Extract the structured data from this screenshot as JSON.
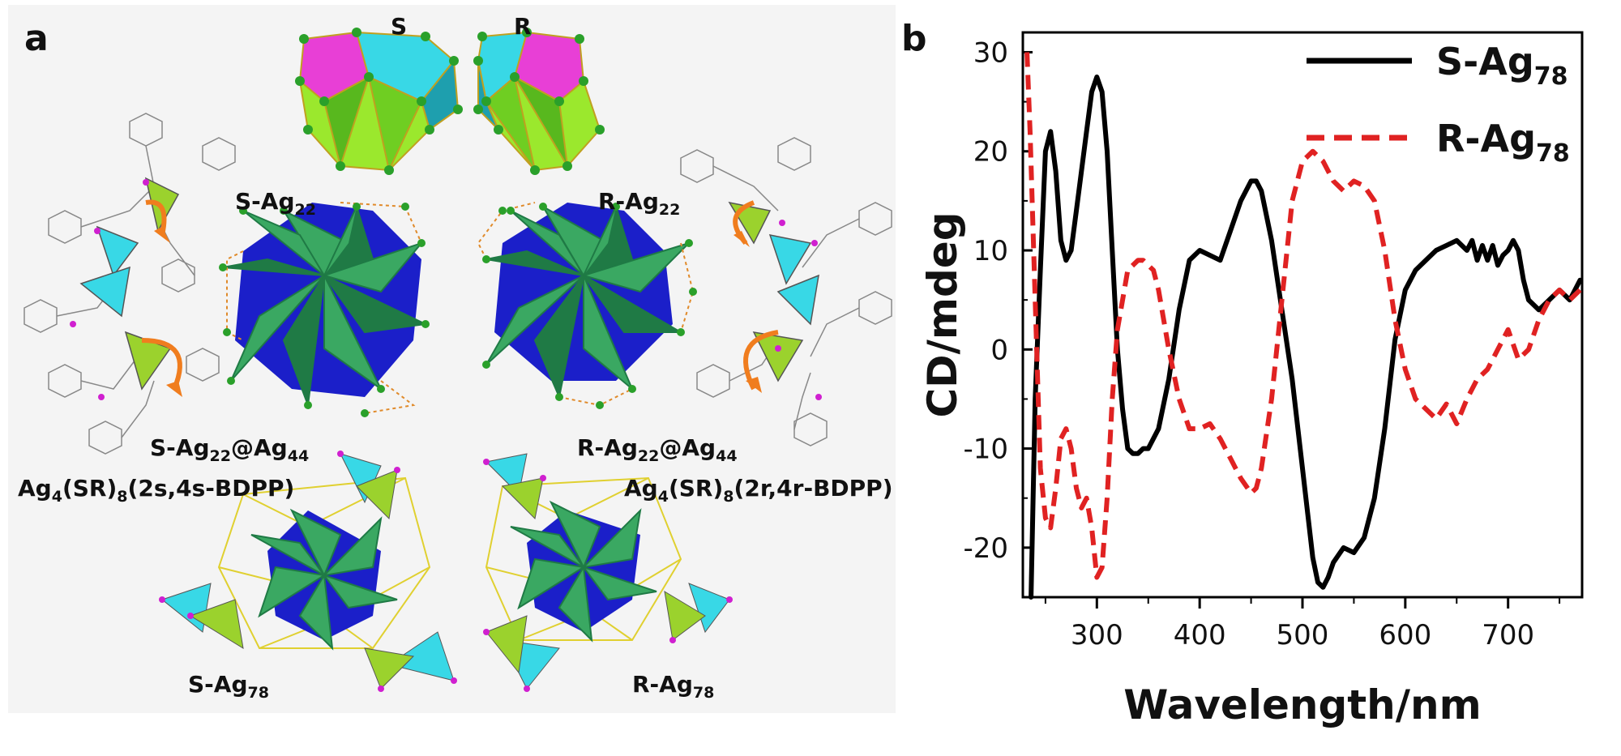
{
  "panel_a": {
    "letter": "a",
    "label_S": "S",
    "label_R": "R",
    "s_ag22": {
      "main": "S-Ag",
      "sub": "22"
    },
    "r_ag22": {
      "main": "R-Ag",
      "sub": "22"
    },
    "s_core": {
      "p1": "S-Ag",
      "s1": "22",
      "p2": "@Ag",
      "s2": "44"
    },
    "r_core": {
      "p1": "R-Ag",
      "s1": "22",
      "p2": "@Ag",
      "s2": "44"
    },
    "s_ligand": {
      "p1": "Ag",
      "s1": "4",
      "p2": "(SR)",
      "s2": "8",
      "p3": "(2s,4s-BDPP)"
    },
    "r_ligand": {
      "p1": "Ag",
      "s1": "4",
      "p2": "(SR)",
      "s2": "8",
      "p3": "(2r,4r-BDPP)"
    },
    "s_ag78": {
      "main": "S-Ag",
      "sub": "78"
    },
    "r_ag78": {
      "main": "R-Ag",
      "sub": "78"
    },
    "colors": {
      "magenta": "#e83fd6",
      "cyan": "#38d8e6",
      "lime": "#9be82d",
      "green": "#3aa862",
      "darkgreen": "#1f7a45",
      "blue": "#1b1fc9",
      "orange": "#f07d1e",
      "atom": "#2aa02a"
    }
  },
  "panel_b": {
    "letter": "b"
  },
  "chart_data": {
    "type": "line",
    "xlabel": "Wavelength/nm",
    "ylabel": "CD/mdeg",
    "xlim": [
      228,
      772
    ],
    "ylim": [
      -25,
      32
    ],
    "xticks": [
      300,
      400,
      500,
      600,
      700
    ],
    "yticks": [
      30,
      20,
      10,
      0,
      -10,
      -20
    ],
    "legend_position": "top-right",
    "series": [
      {
        "name": "S-Ag",
        "name_sub": "78",
        "color": "#000000",
        "dash": "solid",
        "x": [
          236,
          240,
          245,
          250,
          255,
          260,
          265,
          270,
          275,
          280,
          285,
          290,
          295,
          300,
          305,
          310,
          315,
          320,
          325,
          330,
          335,
          340,
          345,
          350,
          360,
          370,
          380,
          390,
          400,
          410,
          420,
          430,
          440,
          450,
          455,
          460,
          470,
          480,
          490,
          500,
          510,
          515,
          520,
          525,
          530,
          540,
          550,
          560,
          570,
          580,
          590,
          600,
          610,
          620,
          630,
          640,
          650,
          660,
          665,
          670,
          675,
          680,
          685,
          690,
          695,
          700,
          705,
          710,
          715,
          720,
          730,
          740,
          750,
          760,
          770
        ],
        "y": [
          -25,
          -5,
          8,
          20,
          22,
          18,
          11,
          9,
          10,
          14,
          18,
          22,
          26,
          27.5,
          26,
          20,
          10,
          0,
          -6,
          -10,
          -10.5,
          -10.5,
          -10,
          -10,
          -8,
          -3,
          4,
          9,
          10,
          9.5,
          9,
          12,
          15,
          17,
          17,
          16,
          11,
          4,
          -3,
          -12,
          -21,
          -23.5,
          -24,
          -23,
          -21.5,
          -20,
          -20.5,
          -19,
          -15,
          -8,
          1,
          6,
          8,
          9,
          10,
          10.5,
          11,
          10,
          11,
          9,
          10.5,
          9,
          10.5,
          8.5,
          9.5,
          10,
          11,
          10,
          7,
          5,
          4,
          5,
          6,
          5,
          7
        ]
      },
      {
        "name": "R-Ag",
        "name_sub": "78",
        "color": "#e02222",
        "dash": "dashed",
        "x": [
          232,
          235,
          240,
          245,
          250,
          255,
          260,
          265,
          270,
          275,
          280,
          285,
          290,
          295,
          300,
          305,
          310,
          315,
          320,
          330,
          340,
          345,
          350,
          355,
          360,
          370,
          380,
          390,
          400,
          410,
          420,
          430,
          440,
          450,
          455,
          460,
          470,
          480,
          490,
          500,
          510,
          515,
          520,
          530,
          540,
          550,
          560,
          570,
          580,
          590,
          600,
          610,
          620,
          630,
          640,
          650,
          660,
          670,
          680,
          690,
          700,
          710,
          720,
          730,
          740,
          750,
          760,
          770
        ],
        "y": [
          30,
          22,
          5,
          -12,
          -17,
          -18,
          -14,
          -9,
          -8,
          -10,
          -14,
          -16,
          -15,
          -18,
          -23,
          -22,
          -15,
          -5,
          2,
          8,
          9,
          9,
          8.5,
          8,
          6,
          0,
          -5,
          -8,
          -8,
          -7.5,
          -9,
          -11,
          -13,
          -14.5,
          -14,
          -12,
          -5,
          5,
          15,
          19,
          20,
          19.5,
          19,
          17,
          16,
          17,
          16.5,
          15,
          10,
          3,
          -2,
          -5,
          -6,
          -7,
          -5.5,
          -7.5,
          -5,
          -3,
          -2,
          0,
          2,
          -1,
          0,
          3,
          5,
          6,
          5,
          6
        ]
      }
    ]
  }
}
